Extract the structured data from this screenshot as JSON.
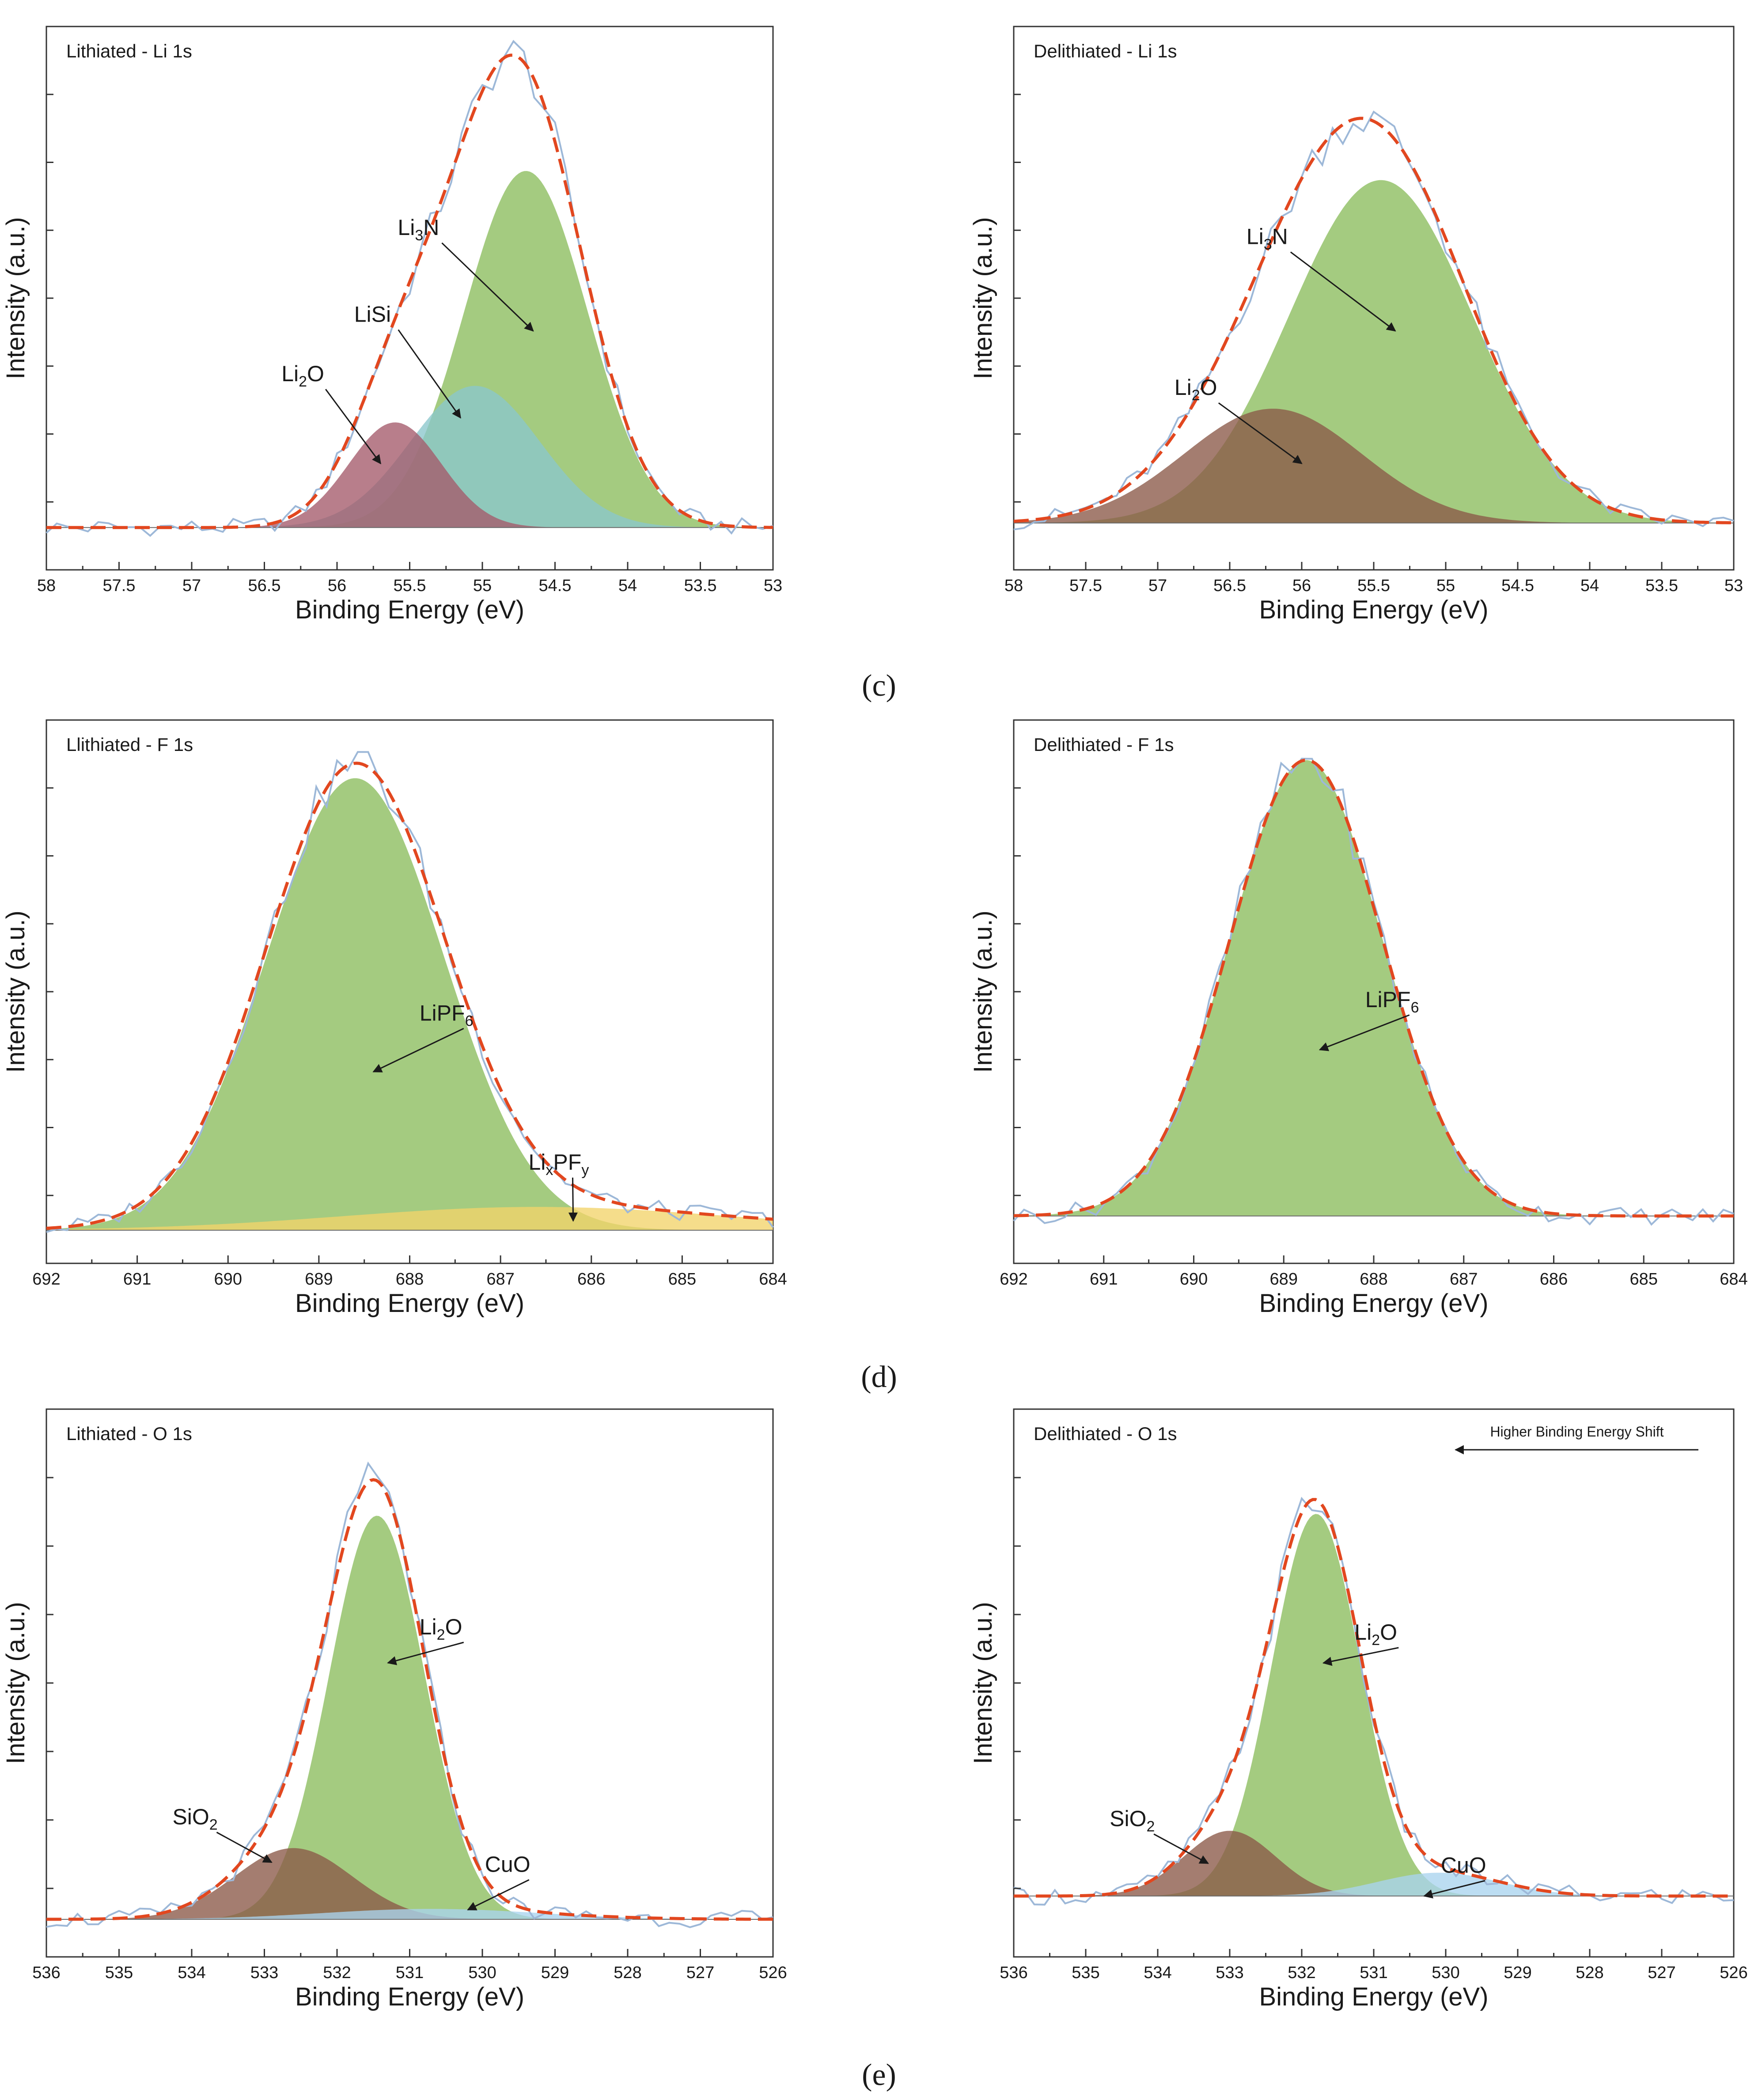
{
  "panel_labels": [
    "(c)",
    "(d)",
    "(e)"
  ],
  "colors": {
    "green": "#a4cb80",
    "blue": "#8ac7cc",
    "red": "#a45a6a",
    "brown": "#8a5848",
    "yellow": "#f2d36a",
    "lightblue": "#a9d3ee",
    "raw": "#9db8d8",
    "envelope": "#e2471f"
  },
  "annotations": {
    "higher_binding_energy_shift": "Higher Binding Energy Shift"
  },
  "chart_data": [
    {
      "type": "area",
      "title": "Lithiated - Li 1s",
      "xlabel": "Binding Energy (eV)",
      "ylabel": "Intensity (a.u.)",
      "xlim": [
        58,
        53
      ],
      "ylim": [
        0,
        1.05
      ],
      "xticks": [
        "58",
        "57.5",
        "57",
        "56.5",
        "56",
        "55.5",
        "55",
        "54.5",
        "54",
        "53.5",
        "53"
      ],
      "baseline": 0.02,
      "peaks": [
        {
          "label": "Li3N",
          "label_main": "Li",
          "sub": "3",
          "label_tail": "N",
          "center": 54.7,
          "fwhm": 1.0,
          "height": 0.78,
          "color": "green",
          "label_at": [
            55.4,
            0.66
          ],
          "arrow_to": [
            54.65,
            0.45
          ]
        },
        {
          "label": "LiSi",
          "label_main": "LiSi",
          "sub": "",
          "label_tail": "",
          "center": 55.05,
          "fwhm": 1.05,
          "height": 0.31,
          "color": "blue",
          "label_at": [
            55.7,
            0.47
          ],
          "arrow_to": [
            55.15,
            0.26
          ]
        },
        {
          "label": "Li2O",
          "label_main": "Li",
          "sub": "2",
          "label_tail": "O",
          "center": 55.6,
          "fwhm": 0.75,
          "height": 0.23,
          "color": "red",
          "label_at": [
            56.2,
            0.34
          ],
          "arrow_to": [
            55.7,
            0.16
          ]
        }
      ]
    },
    {
      "type": "area",
      "title": "Delithiated - Li 1s",
      "xlabel": "Binding Energy (eV)",
      "ylabel": "Intensity (a.u.)",
      "xlim": [
        58,
        53
      ],
      "ylim": [
        0,
        1.05
      ],
      "xticks": [
        "58",
        "57.5",
        "57",
        "56.5",
        "56",
        "55.5",
        "55",
        "54.5",
        "54",
        "53.5",
        "53"
      ],
      "baseline": 0.03,
      "peaks": [
        {
          "label": "Li3N",
          "label_main": "Li",
          "sub": "3",
          "label_tail": "N",
          "center": 55.45,
          "fwhm": 1.5,
          "height": 0.75,
          "color": "green",
          "label_at": [
            56.2,
            0.64
          ],
          "arrow_to": [
            55.35,
            0.45
          ]
        },
        {
          "label": "Li2O",
          "label_main": "Li",
          "sub": "2",
          "label_tail": "O",
          "center": 56.2,
          "fwhm": 1.45,
          "height": 0.25,
          "color": "brown",
          "label_at": [
            56.7,
            0.31
          ],
          "arrow_to": [
            56.0,
            0.16
          ]
        }
      ]
    },
    {
      "type": "area",
      "title": "Llithiated - F 1s",
      "xlabel": "Binding Energy (eV)",
      "ylabel": "Intensity (a.u.)",
      "xlim": [
        692,
        684
      ],
      "ylim": [
        0,
        1.05
      ],
      "xticks": [
        "692",
        "691",
        "690",
        "689",
        "688",
        "687",
        "686",
        "685",
        "684"
      ],
      "baseline": 0.0,
      "peaks": [
        {
          "label": "LiPF6",
          "label_main": "LiPF",
          "sub": "6",
          "label_tail": "",
          "center": 688.6,
          "fwhm": 2.3,
          "height": 0.97,
          "color": "green",
          "label_at": [
            687.6,
            0.45
          ],
          "arrow_to": [
            688.4,
            0.34
          ]
        },
        {
          "label": "LixPFy",
          "label_main": "Li",
          "sub": "x",
          "label_tail": "PF",
          "sub2": "y",
          "center": 686.6,
          "fwhm": 5.0,
          "height": 0.05,
          "color": "yellow",
          "label_at": [
            686.4,
            0.13
          ],
          "arrow_to": [
            686.2,
            0.02
          ]
        }
      ]
    },
    {
      "type": "area",
      "title": "Delithiated - F 1s",
      "xlabel": "Binding Energy (eV)",
      "ylabel": "Intensity (a.u.)",
      "xlim": [
        692,
        684
      ],
      "ylim": [
        0,
        1.05
      ],
      "xticks": [
        "692",
        "691",
        "690",
        "689",
        "688",
        "687",
        "686",
        "685",
        "684"
      ],
      "baseline": 0.03,
      "peaks": [
        {
          "label": "LiPF6",
          "label_main": "LiPF",
          "sub": "6",
          "label_tail": "",
          "center": 688.75,
          "fwhm": 2.0,
          "height": 0.96,
          "color": "green",
          "label_at": [
            687.8,
            0.47
          ],
          "arrow_to": [
            688.6,
            0.38
          ]
        }
      ]
    },
    {
      "type": "area",
      "title": "Lithiated - O 1s",
      "xlabel": "Binding Energy (eV)",
      "ylabel": "Intensity (a.u.)",
      "xlim": [
        536,
        526
      ],
      "ylim": [
        0,
        1.05
      ],
      "xticks": [
        "536",
        "535",
        "534",
        "533",
        "532",
        "531",
        "530",
        "529",
        "528",
        "527",
        "526"
      ],
      "baseline": 0.0,
      "peaks": [
        {
          "label": "Li2O",
          "label_main": "Li",
          "sub": "2",
          "label_tail": "O",
          "center": 531.45,
          "fwhm": 1.55,
          "height": 0.85,
          "color": "green",
          "label_at": [
            530.5,
            0.6
          ],
          "arrow_to": [
            531.3,
            0.54
          ]
        },
        {
          "label": "SiO2",
          "label_main": "SiO",
          "sub": "2",
          "label_tail": "",
          "center": 532.6,
          "fwhm": 1.9,
          "height": 0.15,
          "color": "brown",
          "label_at": [
            533.9,
            0.2
          ],
          "arrow_to": [
            532.9,
            0.12
          ]
        },
        {
          "label": "CuO",
          "label_main": "CuO",
          "sub": "",
          "label_tail": "",
          "center": 530.7,
          "fwhm": 3.5,
          "height": 0.022,
          "color": "lightblue",
          "label_at": [
            529.6,
            0.1
          ],
          "arrow_to": [
            530.2,
            0.02
          ]
        }
      ]
    },
    {
      "type": "area",
      "title": "Delithiated - O 1s",
      "xlabel": "Binding Energy (eV)",
      "ylabel": "Intensity (a.u.)",
      "xlim": [
        536,
        526
      ],
      "ylim": [
        0,
        1.05
      ],
      "xticks": [
        "536",
        "535",
        "534",
        "533",
        "532",
        "531",
        "530",
        "529",
        "528",
        "527",
        "526"
      ],
      "baseline": 0.05,
      "peaks": [
        {
          "label": "Li2O",
          "label_main": "Li",
          "sub": "2",
          "label_tail": "O",
          "center": 531.8,
          "fwhm": 1.45,
          "height": 0.82,
          "color": "green",
          "label_at": [
            530.9,
            0.6
          ],
          "arrow_to": [
            531.7,
            0.55
          ]
        },
        {
          "label": "SiO2",
          "label_main": "SiO",
          "sub": "2",
          "label_tail": "",
          "center": 533.0,
          "fwhm": 1.5,
          "height": 0.14,
          "color": "brown",
          "label_at": [
            534.3,
            0.2
          ],
          "arrow_to": [
            533.3,
            0.12
          ]
        },
        {
          "label": "CuO",
          "label_main": "CuO",
          "sub": "",
          "label_tail": "",
          "center": 530.1,
          "fwhm": 2.0,
          "height": 0.05,
          "color": "lightblue",
          "label_at": [
            529.7,
            0.1
          ],
          "arrow_to": [
            530.3,
            0.05
          ]
        }
      ]
    }
  ]
}
